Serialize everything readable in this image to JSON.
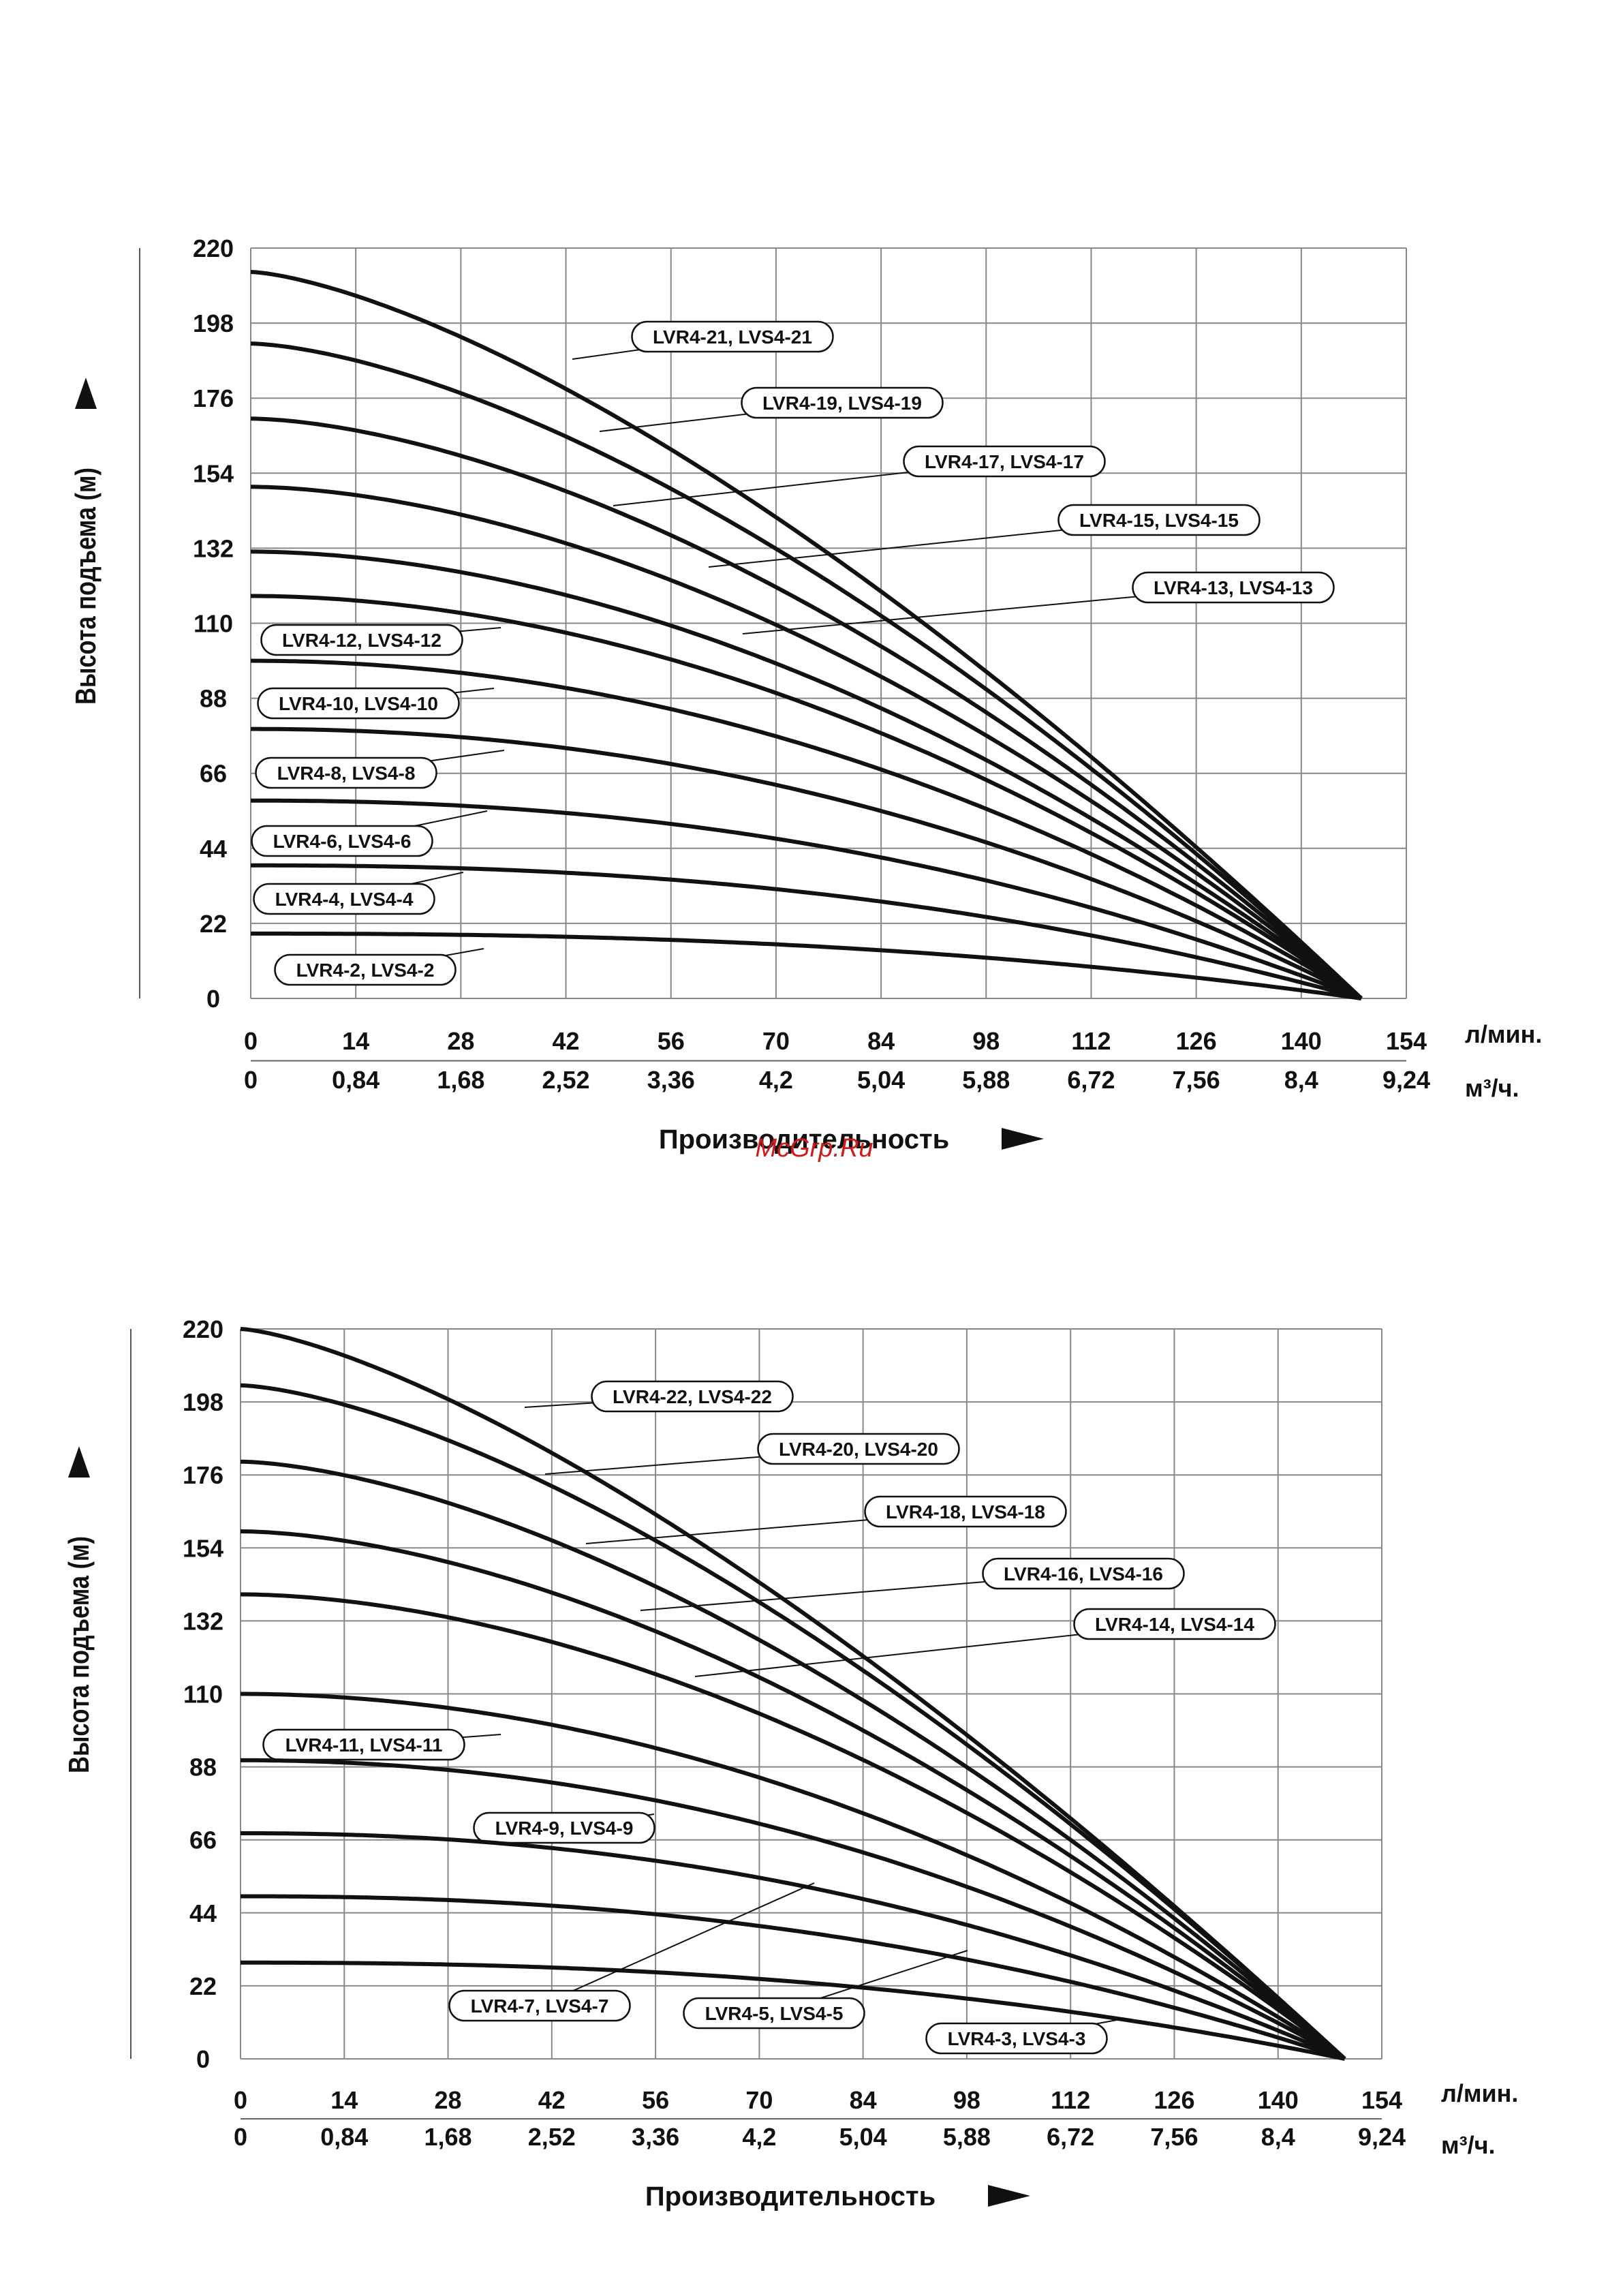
{
  "watermark": "McGrp.Ru",
  "chart_data": [
    {
      "type": "line",
      "ylabel": "Высота подъема (м)",
      "xlabel": "Производительность",
      "x_unit_primary": "л/мин.",
      "x_unit_secondary": "м³/ч.",
      "ylim": [
        0,
        220
      ],
      "xlim": [
        0,
        154
      ],
      "y_ticks": [
        "0",
        "22",
        "44",
        "66",
        "88",
        "110",
        "132",
        "154",
        "176",
        "198",
        "220"
      ],
      "x_ticks_primary": [
        "0",
        "14",
        "28",
        "42",
        "56",
        "70",
        "84",
        "98",
        "112",
        "126",
        "140",
        "154"
      ],
      "x_ticks_secondary": [
        "0",
        "0,84",
        "1,68",
        "2,52",
        "3,36",
        "4,2",
        "5,04",
        "5,88",
        "6,72",
        "7,56",
        "8,4",
        "9,24"
      ],
      "grid": true,
      "x_end": 148,
      "series": [
        {
          "name": "LVR4-21,  LVS4-21",
          "shutoff": 213,
          "shape": 1.45
        },
        {
          "name": "LVR4-19,  LVS4-19",
          "shutoff": 192,
          "shape": 1.55
        },
        {
          "name": "LVR4-17,  LVS4-17",
          "shutoff": 170,
          "shape": 1.65
        },
        {
          "name": "LVR4-15,  LVS4-15",
          "shutoff": 150,
          "shape": 1.75
        },
        {
          "name": "LVR4-13,  LVS4-13",
          "shutoff": 131,
          "shape": 1.85
        },
        {
          "name": "LVR4-12,  LVS4-12",
          "shutoff": 118,
          "shape": 1.9
        },
        {
          "name": "LVR4-10,  LVS4-10",
          "shutoff": 99,
          "shape": 2.0
        },
        {
          "name": "LVR4-8,  LVS4-8",
          "shutoff": 79,
          "shape": 2.1
        },
        {
          "name": "LVR4-6,  LVS4-6",
          "shutoff": 58,
          "shape": 2.2
        },
        {
          "name": "LVR4-4,  LVS4-4",
          "shutoff": 39,
          "shape": 2.3
        },
        {
          "name": "LVR4-2,  LVS4-2",
          "shutoff": 19,
          "shape": 2.4
        }
      ]
    },
    {
      "type": "line",
      "ylabel": "Высота подъема (м)",
      "xlabel": "Производительность",
      "x_unit_primary": "л/мин.",
      "x_unit_secondary": "м³/ч.",
      "ylim": [
        0,
        220
      ],
      "xlim": [
        0,
        154
      ],
      "y_ticks": [
        "0",
        "22",
        "44",
        "66",
        "88",
        "110",
        "132",
        "154",
        "176",
        "198",
        "220"
      ],
      "x_ticks_primary": [
        "0",
        "14",
        "28",
        "42",
        "56",
        "70",
        "84",
        "98",
        "112",
        "126",
        "140",
        "154"
      ],
      "x_ticks_secondary": [
        "0",
        "0,84",
        "1,68",
        "2,52",
        "3,36",
        "4,2",
        "5,04",
        "5,88",
        "6,72",
        "7,56",
        "8,4",
        "9,24"
      ],
      "grid": true,
      "x_end": 149,
      "series": [
        {
          "name": "LVR4-22,  LVS4-22",
          "shutoff": 220,
          "shape": 1.4
        },
        {
          "name": "LVR4-20,  LVS4-20",
          "shutoff": 203,
          "shape": 1.5
        },
        {
          "name": "LVR4-18,  LVS4-18",
          "shutoff": 180,
          "shape": 1.6
        },
        {
          "name": "LVR4-16,  LVS4-16",
          "shutoff": 159,
          "shape": 1.7
        },
        {
          "name": "LVR4-14,  LVS4-14",
          "shutoff": 140,
          "shape": 1.8
        },
        {
          "name": "LVR4-11,  LVS4-11",
          "shutoff": 110,
          "shape": 1.95
        },
        {
          "name": "LVR4-9,  LVS4-9",
          "shutoff": 90,
          "shape": 2.05
        },
        {
          "name": "LVR4-7,  LVS4-7",
          "shutoff": 68,
          "shape": 2.15
        },
        {
          "name": "LVR4-5,  LVS4-5",
          "shutoff": 49,
          "shape": 2.25
        },
        {
          "name": "LVR4-3,  LVS4-3",
          "shutoff": 29,
          "shape": 2.35
        }
      ]
    }
  ]
}
